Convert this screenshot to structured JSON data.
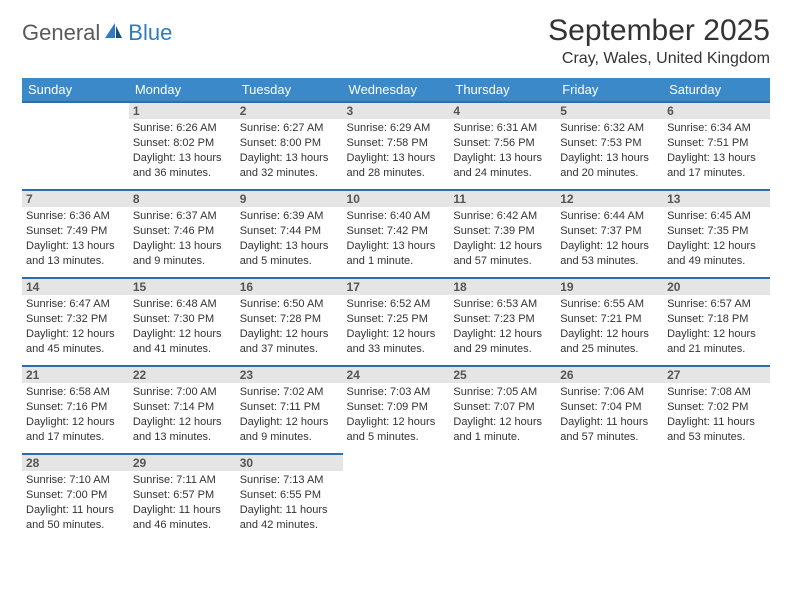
{
  "logo": {
    "general": "General",
    "blue": "Blue"
  },
  "title": "September 2025",
  "location": "Cray, Wales, United Kingdom",
  "colors": {
    "header_bg": "#3b89c9",
    "header_text": "#ffffff",
    "row_divider": "#2f6ea8",
    "daynum_bg": "#e5e5e5",
    "daynum_text": "#555555",
    "body_text": "#333333",
    "logo_gray": "#5a5a5a",
    "logo_blue": "#2f7bbf"
  },
  "weekdays": [
    "Sunday",
    "Monday",
    "Tuesday",
    "Wednesday",
    "Thursday",
    "Friday",
    "Saturday"
  ],
  "weeks": [
    [
      null,
      {
        "n": "1",
        "sr": "Sunrise: 6:26 AM",
        "ss": "Sunset: 8:02 PM",
        "d1": "Daylight: 13 hours",
        "d2": "and 36 minutes."
      },
      {
        "n": "2",
        "sr": "Sunrise: 6:27 AM",
        "ss": "Sunset: 8:00 PM",
        "d1": "Daylight: 13 hours",
        "d2": "and 32 minutes."
      },
      {
        "n": "3",
        "sr": "Sunrise: 6:29 AM",
        "ss": "Sunset: 7:58 PM",
        "d1": "Daylight: 13 hours",
        "d2": "and 28 minutes."
      },
      {
        "n": "4",
        "sr": "Sunrise: 6:31 AM",
        "ss": "Sunset: 7:56 PM",
        "d1": "Daylight: 13 hours",
        "d2": "and 24 minutes."
      },
      {
        "n": "5",
        "sr": "Sunrise: 6:32 AM",
        "ss": "Sunset: 7:53 PM",
        "d1": "Daylight: 13 hours",
        "d2": "and 20 minutes."
      },
      {
        "n": "6",
        "sr": "Sunrise: 6:34 AM",
        "ss": "Sunset: 7:51 PM",
        "d1": "Daylight: 13 hours",
        "d2": "and 17 minutes."
      }
    ],
    [
      {
        "n": "7",
        "sr": "Sunrise: 6:36 AM",
        "ss": "Sunset: 7:49 PM",
        "d1": "Daylight: 13 hours",
        "d2": "and 13 minutes."
      },
      {
        "n": "8",
        "sr": "Sunrise: 6:37 AM",
        "ss": "Sunset: 7:46 PM",
        "d1": "Daylight: 13 hours",
        "d2": "and 9 minutes."
      },
      {
        "n": "9",
        "sr": "Sunrise: 6:39 AM",
        "ss": "Sunset: 7:44 PM",
        "d1": "Daylight: 13 hours",
        "d2": "and 5 minutes."
      },
      {
        "n": "10",
        "sr": "Sunrise: 6:40 AM",
        "ss": "Sunset: 7:42 PM",
        "d1": "Daylight: 13 hours",
        "d2": "and 1 minute."
      },
      {
        "n": "11",
        "sr": "Sunrise: 6:42 AM",
        "ss": "Sunset: 7:39 PM",
        "d1": "Daylight: 12 hours",
        "d2": "and 57 minutes."
      },
      {
        "n": "12",
        "sr": "Sunrise: 6:44 AM",
        "ss": "Sunset: 7:37 PM",
        "d1": "Daylight: 12 hours",
        "d2": "and 53 minutes."
      },
      {
        "n": "13",
        "sr": "Sunrise: 6:45 AM",
        "ss": "Sunset: 7:35 PM",
        "d1": "Daylight: 12 hours",
        "d2": "and 49 minutes."
      }
    ],
    [
      {
        "n": "14",
        "sr": "Sunrise: 6:47 AM",
        "ss": "Sunset: 7:32 PM",
        "d1": "Daylight: 12 hours",
        "d2": "and 45 minutes."
      },
      {
        "n": "15",
        "sr": "Sunrise: 6:48 AM",
        "ss": "Sunset: 7:30 PM",
        "d1": "Daylight: 12 hours",
        "d2": "and 41 minutes."
      },
      {
        "n": "16",
        "sr": "Sunrise: 6:50 AM",
        "ss": "Sunset: 7:28 PM",
        "d1": "Daylight: 12 hours",
        "d2": "and 37 minutes."
      },
      {
        "n": "17",
        "sr": "Sunrise: 6:52 AM",
        "ss": "Sunset: 7:25 PM",
        "d1": "Daylight: 12 hours",
        "d2": "and 33 minutes."
      },
      {
        "n": "18",
        "sr": "Sunrise: 6:53 AM",
        "ss": "Sunset: 7:23 PM",
        "d1": "Daylight: 12 hours",
        "d2": "and 29 minutes."
      },
      {
        "n": "19",
        "sr": "Sunrise: 6:55 AM",
        "ss": "Sunset: 7:21 PM",
        "d1": "Daylight: 12 hours",
        "d2": "and 25 minutes."
      },
      {
        "n": "20",
        "sr": "Sunrise: 6:57 AM",
        "ss": "Sunset: 7:18 PM",
        "d1": "Daylight: 12 hours",
        "d2": "and 21 minutes."
      }
    ],
    [
      {
        "n": "21",
        "sr": "Sunrise: 6:58 AM",
        "ss": "Sunset: 7:16 PM",
        "d1": "Daylight: 12 hours",
        "d2": "and 17 minutes."
      },
      {
        "n": "22",
        "sr": "Sunrise: 7:00 AM",
        "ss": "Sunset: 7:14 PM",
        "d1": "Daylight: 12 hours",
        "d2": "and 13 minutes."
      },
      {
        "n": "23",
        "sr": "Sunrise: 7:02 AM",
        "ss": "Sunset: 7:11 PM",
        "d1": "Daylight: 12 hours",
        "d2": "and 9 minutes."
      },
      {
        "n": "24",
        "sr": "Sunrise: 7:03 AM",
        "ss": "Sunset: 7:09 PM",
        "d1": "Daylight: 12 hours",
        "d2": "and 5 minutes."
      },
      {
        "n": "25",
        "sr": "Sunrise: 7:05 AM",
        "ss": "Sunset: 7:07 PM",
        "d1": "Daylight: 12 hours",
        "d2": "and 1 minute."
      },
      {
        "n": "26",
        "sr": "Sunrise: 7:06 AM",
        "ss": "Sunset: 7:04 PM",
        "d1": "Daylight: 11 hours",
        "d2": "and 57 minutes."
      },
      {
        "n": "27",
        "sr": "Sunrise: 7:08 AM",
        "ss": "Sunset: 7:02 PM",
        "d1": "Daylight: 11 hours",
        "d2": "and 53 minutes."
      }
    ],
    [
      {
        "n": "28",
        "sr": "Sunrise: 7:10 AM",
        "ss": "Sunset: 7:00 PM",
        "d1": "Daylight: 11 hours",
        "d2": "and 50 minutes."
      },
      {
        "n": "29",
        "sr": "Sunrise: 7:11 AM",
        "ss": "Sunset: 6:57 PM",
        "d1": "Daylight: 11 hours",
        "d2": "and 46 minutes."
      },
      {
        "n": "30",
        "sr": "Sunrise: 7:13 AM",
        "ss": "Sunset: 6:55 PM",
        "d1": "Daylight: 11 hours",
        "d2": "and 42 minutes."
      },
      null,
      null,
      null,
      null
    ]
  ]
}
